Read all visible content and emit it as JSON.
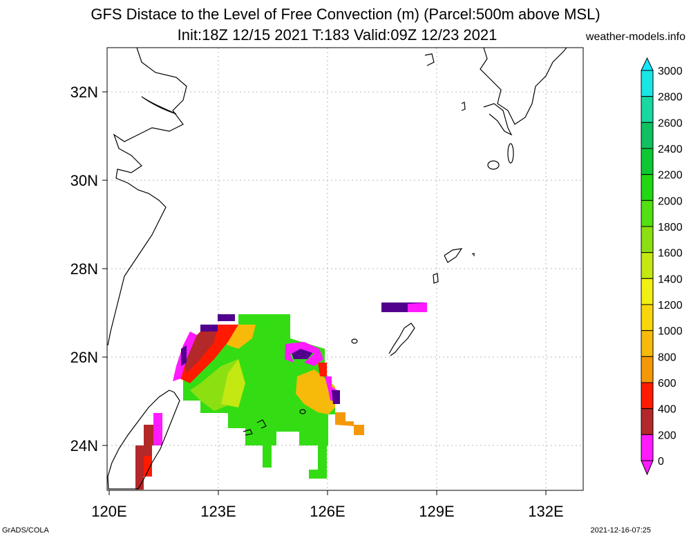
{
  "header": {
    "title_line1": "GFS Distace to the Level of Free Convection (m) (Parcel:500m above MSL)",
    "title_line2": "Init:18Z 12/15 2021 T:183 Valid:09Z 12/23 2021",
    "credit": "weather-models.info"
  },
  "footer": {
    "software": "GrADS/COLA",
    "timestamp": "2021-12-16-07:25"
  },
  "map": {
    "lon_ticks": [
      "120E",
      "123E",
      "126E",
      "129E",
      "132E"
    ],
    "lat_ticks": [
      "32N",
      "30N",
      "28N",
      "26N",
      "24N"
    ],
    "lon_range": [
      120,
      133
    ],
    "lat_range": [
      23,
      33
    ],
    "grid": true
  },
  "colorbar": {
    "labels": [
      "3000",
      "2800",
      "2600",
      "2400",
      "2200",
      "2000",
      "1800",
      "1600",
      "1400",
      "1200",
      "1000",
      "800",
      "600",
      "400",
      "200",
      "0"
    ],
    "colors": [
      "#1ae6e6",
      "#19d8a0",
      "#11c060",
      "#0dc832",
      "#22d812",
      "#52e012",
      "#8ce012",
      "#c4e812",
      "#f2f012",
      "#f8d60c",
      "#f7ba0a",
      "#f59808",
      "#ff1a00",
      "#b32828",
      "#ff1aff",
      "#50008c",
      "#14e6ff"
    ]
  }
}
